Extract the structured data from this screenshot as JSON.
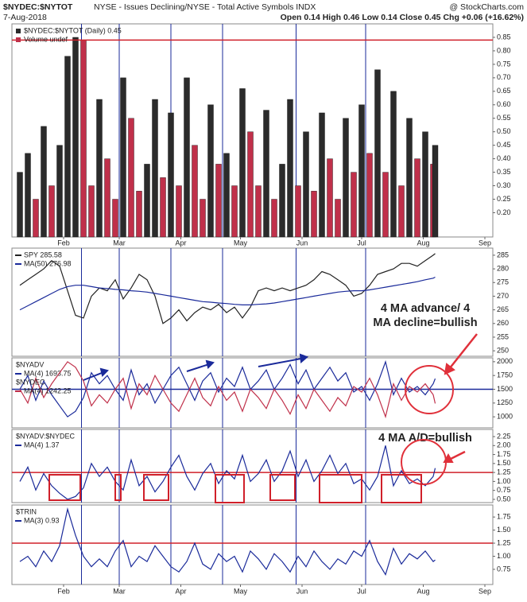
{
  "chart_data": [
    {
      "type": "bar",
      "title": "$NYDEC:$NYTOT",
      "subtitle": "NYSE - Issues Declining/NYSE - Total Active Symbols INDX",
      "source": "@ StockCharts.com",
      "date": "7-Aug-2018",
      "quote": "Open 0.14 High 0.46 Low 0.14 Close 0.45 Chg +0.06 (+16.62%)",
      "label": "$NYDEC:$NYTOT (Daily) 0.45",
      "volume": "Volume undef",
      "x": [
        "2018-01-10",
        "2018-01-14",
        "2018-01-18",
        "2018-01-22",
        "2018-01-26",
        "2018-01-30",
        "2018-02-03",
        "2018-02-07",
        "2018-02-11",
        "2018-02-15",
        "2018-02-19",
        "2018-02-23",
        "2018-02-27",
        "2018-03-03",
        "2018-03-07",
        "2018-03-11",
        "2018-03-15",
        "2018-03-19",
        "2018-03-23",
        "2018-03-27",
        "2018-03-31",
        "2018-04-04",
        "2018-04-08",
        "2018-04-12",
        "2018-04-16",
        "2018-04-20",
        "2018-04-24",
        "2018-04-28",
        "2018-05-02",
        "2018-05-06",
        "2018-05-10",
        "2018-05-14",
        "2018-05-18",
        "2018-05-22",
        "2018-05-26",
        "2018-05-30",
        "2018-06-03",
        "2018-06-07",
        "2018-06-11",
        "2018-06-15",
        "2018-06-19",
        "2018-06-23",
        "2018-06-27",
        "2018-07-01",
        "2018-07-05",
        "2018-07-09",
        "2018-07-13",
        "2018-07-17",
        "2018-07-21",
        "2018-07-25",
        "2018-07-29",
        "2018-08-02",
        "2018-08-06",
        "2018-08-07"
      ],
      "xlim": [
        "2018-01-06",
        "2018-09-05"
      ],
      "xticks": [
        {
          "value": "2018-02-01",
          "label": "Feb"
        },
        {
          "value": "2018-03-01",
          "label": "Mar"
        },
        {
          "value": "2018-04-01",
          "label": "Apr"
        },
        {
          "value": "2018-05-01",
          "label": "May"
        },
        {
          "value": "2018-06-01",
          "label": "Jun"
        },
        {
          "value": "2018-07-01",
          "label": "Jul"
        },
        {
          "value": "2018-08-01",
          "label": "Aug"
        },
        {
          "value": "2018-09-01",
          "label": "Sep"
        }
      ],
      "vlines": [
        "2018-02-10",
        "2018-03-01",
        "2018-03-27",
        "2018-04-22",
        "2018-05-29",
        "2018-07-03"
      ],
      "vline_color": "#1a2a9a",
      "values": [
        0.35,
        0.42,
        0.25,
        0.52,
        0.3,
        0.45,
        0.78,
        0.85,
        0.84,
        0.3,
        0.62,
        0.4,
        0.25,
        0.7,
        0.55,
        0.28,
        0.38,
        0.62,
        0.33,
        0.57,
        0.3,
        0.7,
        0.45,
        0.25,
        0.6,
        0.38,
        0.42,
        0.3,
        0.66,
        0.5,
        0.3,
        0.58,
        0.25,
        0.38,
        0.62,
        0.3,
        0.5,
        0.28,
        0.57,
        0.4,
        0.25,
        0.55,
        0.35,
        0.6,
        0.42,
        0.73,
        0.35,
        0.65,
        0.3,
        0.55,
        0.4,
        0.5,
        0.38,
        0.45
      ],
      "up_color": "#2b2b2b",
      "down_color": "#c0304a",
      "ylim": [
        0.11,
        0.9
      ],
      "yticks": [
        {
          "value": 0.2,
          "label": "0.20"
        },
        0.25,
        {
          "value": 0.3,
          "label": "0.30"
        },
        0.35,
        {
          "value": 0.4,
          "label": "0.40"
        },
        0.45,
        {
          "value": 0.5,
          "label": "0.50"
        },
        0.55,
        {
          "value": 0.6,
          "label": "0.60"
        },
        0.65,
        {
          "value": 0.7,
          "label": "0.70"
        },
        0.75,
        {
          "value": 0.8,
          "label": "0.80"
        },
        0.85
      ],
      "hline": 0.84,
      "hline_color": "#d0202a"
    },
    {
      "type": "line",
      "series": [
        {
          "name": "SPY 285.58",
          "color": "#222222",
          "values": [
            274,
            276,
            278,
            280,
            283,
            281,
            272,
            263,
            262,
            270,
            273,
            272,
            276,
            269,
            273,
            278,
            276,
            270,
            260,
            262,
            265,
            261,
            264,
            266,
            265,
            267,
            264,
            266,
            262,
            266,
            272,
            273,
            272,
            273,
            272,
            273,
            274,
            276,
            279,
            278,
            276,
            274,
            270,
            271,
            274,
            278,
            279,
            280,
            282,
            282,
            281,
            283,
            285,
            285.58
          ]
        },
        {
          "name": "MA(50) 276.98",
          "color": "#1a2a9a",
          "values": [
            265,
            266.5,
            268,
            269.5,
            271,
            272.5,
            273.5,
            274,
            274,
            273.5,
            273,
            272.8,
            272.5,
            272.3,
            272,
            271.8,
            271.5,
            271,
            270.5,
            270,
            269.5,
            269,
            268.5,
            268,
            267.8,
            267.5,
            267.3,
            267,
            266.8,
            266.8,
            267,
            267.2,
            267.5,
            268,
            268.5,
            269,
            269.5,
            270,
            270.5,
            271,
            271.5,
            271.8,
            272,
            272,
            272.3,
            272.8,
            273.3,
            273.8,
            274.3,
            274.8,
            275.3,
            276,
            276.6,
            276.98
          ]
        }
      ],
      "ylim": [
        248,
        287.6
      ],
      "yticks": [
        250,
        255,
        260,
        265,
        270,
        275,
        280,
        285
      ],
      "annotation": [
        "4 MA advance/ 4",
        "MA decline=bullish"
      ],
      "annotation_color": "#e0303a"
    },
    {
      "type": "line",
      "series": [
        {
          "label": "$NYADV",
          "name": "MA(4) 1693.75",
          "color": "#1a2a9a",
          "values": [
            1500,
            1750,
            1300,
            1650,
            1400,
            1200,
            1000,
            1100,
            1350,
            1800,
            1600,
            1750,
            1500,
            1300,
            1850,
            1400,
            1600,
            1250,
            1500,
            1750,
            1900,
            1600,
            1300,
            1650,
            1800,
            1450,
            1700,
            1550,
            1900,
            1500,
            1650,
            1850,
            1500,
            1700,
            1950,
            1600,
            1850,
            1500,
            1700,
            1900,
            1650,
            1800,
            1450,
            1550,
            1300,
            1600,
            2000,
            1400,
            1700,
            1450,
            1550,
            1400,
            1600,
            1693.75
          ]
        },
        {
          "label": "$NYDEC",
          "name": "MA(4) 1242.25",
          "color": "#c0304a",
          "values": [
            1500,
            1250,
            1700,
            1350,
            1600,
            1800,
            2000,
            1900,
            1650,
            1200,
            1400,
            1250,
            1500,
            1700,
            1150,
            1600,
            1400,
            1750,
            1500,
            1250,
            1100,
            1400,
            1700,
            1350,
            1200,
            1550,
            1300,
            1450,
            1100,
            1500,
            1350,
            1150,
            1500,
            1300,
            1050,
            1400,
            1150,
            1500,
            1300,
            1100,
            1350,
            1200,
            1550,
            1450,
            1700,
            1400,
            1000,
            1600,
            1300,
            1550,
            1450,
            1600,
            1400,
            1242.25
          ]
        }
      ],
      "ylim": [
        800,
        2070
      ],
      "yticks": [
        1000,
        1250,
        1500,
        1750,
        2000
      ],
      "hline": 1500,
      "hline_color": "#1a2a9a"
    },
    {
      "type": "line",
      "series": [
        {
          "label": "$NYADV:$NYDEC",
          "name": "MA(4) 1.37",
          "color": "#1a2a9a",
          "values": [
            1.0,
            1.4,
            0.76,
            1.22,
            0.88,
            0.67,
            0.5,
            0.58,
            0.82,
            1.5,
            1.14,
            1.4,
            1.0,
            0.76,
            1.6,
            0.88,
            1.14,
            0.71,
            1.0,
            1.4,
            1.73,
            1.14,
            0.76,
            1.22,
            1.5,
            0.94,
            1.3,
            1.07,
            1.73,
            1.0,
            1.22,
            1.6,
            1.0,
            1.3,
            1.85,
            1.14,
            1.6,
            1.0,
            1.3,
            1.73,
            1.22,
            1.5,
            0.94,
            1.07,
            0.76,
            1.14,
            2.0,
            0.88,
            1.3,
            0.94,
            1.07,
            0.88,
            1.14,
            1.37
          ]
        }
      ],
      "ylim": [
        0.41,
        2.45
      ],
      "yticks": [
        {
          "value": 0.5,
          "label": "0.50"
        },
        0.75,
        {
          "value": 1,
          "label": "1.00"
        },
        1.25,
        {
          "value": 1.5,
          "label": "1.50"
        },
        1.75,
        {
          "value": 2,
          "label": "2.00"
        },
        2.25
      ],
      "hline": 1.25,
      "hline_color": "#d0202a",
      "annotation": [
        "4 MA A/D=bullish"
      ],
      "annotation_color": "#e0303a"
    },
    {
      "type": "line",
      "series": [
        {
          "label": "$TRIN",
          "name": "MA(3) 0.93",
          "color": "#1a2a9a",
          "values": [
            0.9,
            1.0,
            0.8,
            1.1,
            0.9,
            1.2,
            1.9,
            1.4,
            1.0,
            0.8,
            0.95,
            0.8,
            1.1,
            1.3,
            0.8,
            1.0,
            0.9,
            1.2,
            1.0,
            0.8,
            0.7,
            0.9,
            1.25,
            0.85,
            0.75,
            1.05,
            0.9,
            1.0,
            0.7,
            1.1,
            0.95,
            0.75,
            1.05,
            0.9,
            0.7,
            1.0,
            0.8,
            1.1,
            0.9,
            0.75,
            0.95,
            0.85,
            1.1,
            1.0,
            1.3,
            0.9,
            0.65,
            1.15,
            0.85,
            1.05,
            0.95,
            1.1,
            0.9,
            0.93
          ]
        }
      ],
      "ylim": [
        0.46,
        1.98
      ],
      "yticks": [
        0.75,
        {
          "value": 1,
          "label": "1.00"
        },
        1.25,
        {
          "value": 1.5,
          "label": "1.50"
        },
        1.75
      ],
      "hline": 1.25,
      "hline_color": "#d0202a"
    }
  ]
}
